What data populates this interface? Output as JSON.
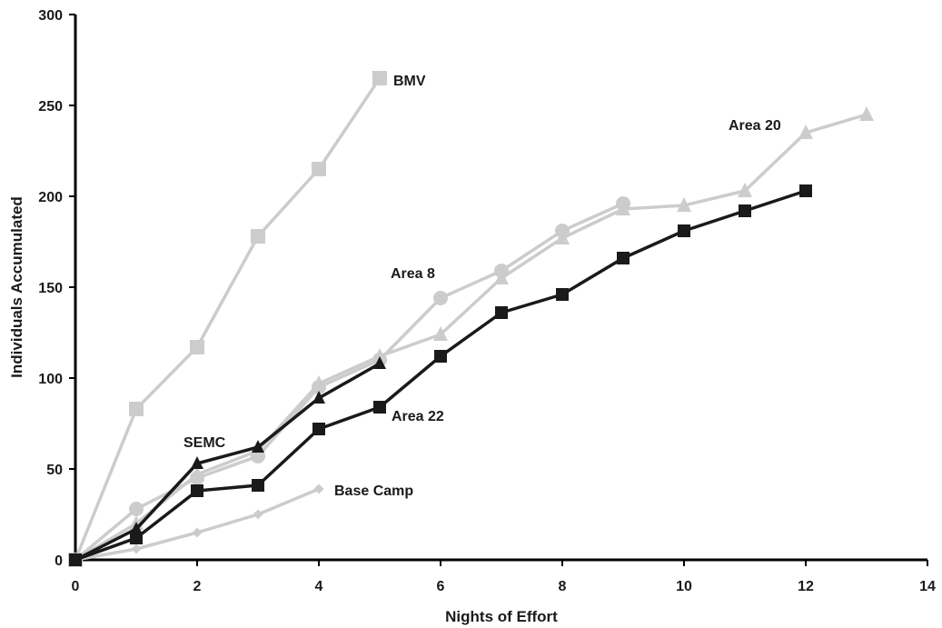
{
  "chart_data": {
    "type": "line",
    "title": "",
    "xlabel": "Nights of Effort",
    "ylabel": "Individuals Accumulated",
    "xlim": [
      0,
      14
    ],
    "ylim": [
      0,
      300
    ],
    "xticks": [
      0,
      2,
      4,
      6,
      8,
      10,
      12,
      14
    ],
    "yticks": [
      0,
      50,
      100,
      150,
      200,
      250,
      300
    ],
    "grid": false,
    "legend": "none (series labeled directly on the plot)",
    "series": [
      {
        "name": "BMV",
        "color": "#cccccc",
        "marker": "square",
        "x": [
          0,
          1,
          2,
          3,
          4,
          5
        ],
        "y": [
          0,
          83,
          117,
          178,
          215,
          265
        ]
      },
      {
        "name": "Area 20",
        "color": "#cccccc",
        "marker": "triangle",
        "x": [
          0,
          1,
          2,
          3,
          4,
          5,
          6,
          7,
          8,
          9,
          10,
          11,
          12,
          13
        ],
        "y": [
          0,
          20,
          47,
          60,
          97,
          112,
          124,
          155,
          177,
          193,
          195,
          203,
          235,
          245
        ]
      },
      {
        "name": "Area 8",
        "color": "#cccccc",
        "marker": "circle",
        "x": [
          0,
          1,
          2,
          3,
          4,
          5,
          6,
          7,
          8,
          9
        ],
        "y": [
          0,
          28,
          45,
          57,
          95,
          110,
          144,
          159,
          181,
          196
        ]
      },
      {
        "name": "Base Camp",
        "color": "#cccccc",
        "marker": "diamond",
        "x": [
          0,
          1,
          2,
          3,
          4
        ],
        "y": [
          0,
          6,
          15,
          25,
          39
        ]
      },
      {
        "name": "SEMC",
        "color": "#1a1a1a",
        "marker": "triangle",
        "x": [
          0,
          1,
          2,
          3,
          4,
          5
        ],
        "y": [
          0,
          17,
          53,
          62,
          89,
          108
        ]
      },
      {
        "name": "Area 22",
        "color": "#1a1a1a",
        "marker": "square",
        "x": [
          0,
          1,
          2,
          3,
          4,
          5,
          6,
          7,
          8,
          9,
          10,
          11,
          12
        ],
        "y": [
          0,
          12,
          38,
          41,
          72,
          84,
          112,
          136,
          146,
          166,
          181,
          192,
          203
        ]
      }
    ]
  }
}
